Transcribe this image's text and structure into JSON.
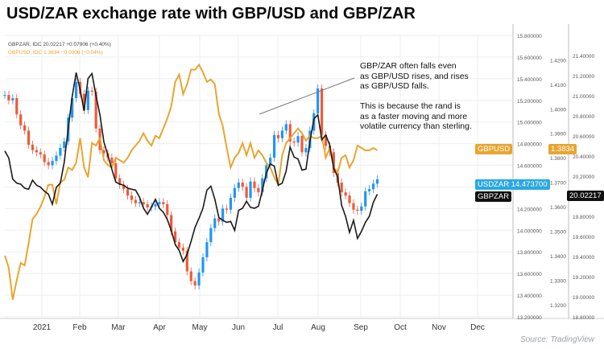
{
  "title": "USD/ZAR exchange rate with GBP/USD and GBP/ZAR",
  "source": "Source: TradingView",
  "legend": {
    "gbpzar_line": "GBPZAR, IDC  20.02217  +0.07906 (+0.40%)",
    "gbpusd_line": "GBPUSD, IDC  1.3834  −0.0006 (−0.04%)"
  },
  "annotation": {
    "line1": "GBP/ZAR often falls even",
    "line2": "as GBP/USD rises, and rises",
    "line3": "as GBP/USD falls.",
    "line4": "This is because the rand is",
    "line5": "as a faster moving and more",
    "line6": "volatile currency than sterling."
  },
  "badges": {
    "gbpusd_name": "GBPUSD",
    "gbpusd_value": "1.3834",
    "usdzar_combined": "USDZAR 14.473700",
    "gbpzar_name": "GBPZAR",
    "gbpzar_value": "20.02217"
  },
  "colors": {
    "gbpusd": "#e8a530",
    "gbpzar": "#1a1a1a",
    "up_candle": "#2196f3",
    "down_candle": "#ef5a3a",
    "grid": "#eeeeee"
  },
  "chart_data": {
    "type": "line",
    "title": "USD/ZAR exchange rate with GBP/USD and GBP/ZAR",
    "x_tick_labels": [
      "2021",
      "Feb",
      "Mar",
      "Apr",
      "May",
      "Jun",
      "Jul",
      "Aug",
      "Sep",
      "Oct",
      "Nov",
      "Dec"
    ],
    "axes": {
      "usdzar": {
        "ticks": [
          "15.800000",
          "15.600000",
          "15.400000",
          "15.200000",
          "15.000000",
          "14.800000",
          "14.600000",
          "14.400000",
          "14.200000",
          "14.000000",
          "13.800000",
          "13.600000",
          "13.400000",
          "13.200000"
        ],
        "ylim": [
          13.2,
          15.8
        ]
      },
      "gbpusd": {
        "ticks": [
          "1.4200",
          "1.4100",
          "1.4000",
          "1.3900",
          "1.3800",
          "1.3700",
          "1.3600",
          "1.3500",
          "1.3400",
          "1.3300",
          "1.3200"
        ],
        "ylim": [
          1.315,
          1.43
        ]
      },
      "gbpzar": {
        "ticks": [
          "21.40000",
          "21.20000",
          "21.00000",
          "20.80000",
          "20.60000",
          "20.40000",
          "20.20000",
          "20.00000",
          "19.80000",
          "19.60000",
          "19.40000",
          "19.20000",
          "19.00000",
          "18.80000"
        ],
        "ylim": [
          18.8,
          21.6
        ]
      }
    },
    "series": [
      {
        "name": "GBPZAR",
        "axis": "gbpzar",
        "style": "line",
        "x": [
          0,
          2,
          4,
          6,
          8,
          10,
          12,
          14,
          16,
          18,
          20,
          22,
          24,
          26,
          28,
          30,
          32,
          34,
          36,
          38,
          40,
          42,
          44,
          46,
          48,
          50,
          52,
          54,
          56,
          58,
          60,
          62,
          64,
          66,
          68,
          70,
          72,
          74,
          76,
          78,
          80,
          82,
          84,
          86,
          88,
          90,
          92,
          94,
          96,
          98,
          100,
          102,
          104,
          106,
          108,
          110,
          112,
          114,
          116,
          118,
          120,
          122,
          124,
          126,
          128,
          130,
          132,
          134,
          136,
          138,
          140,
          142,
          144,
          146,
          148,
          150,
          152,
          154,
          156,
          158,
          160,
          162,
          164,
          166,
          168,
          170,
          172,
          174,
          176,
          178,
          180,
          182,
          184,
          186,
          188
        ],
        "values": [
          20.45,
          20.38,
          20.17,
          20.13,
          20.12,
          20.08,
          20.07,
          20.16,
          20.11,
          20.09,
          20.05,
          20.02,
          19.92,
          20.09,
          20.13,
          20.34,
          20.67,
          20.99,
          21.23,
          21.06,
          20.85,
          21.17,
          21.22,
          21.0,
          20.81,
          20.54,
          20.41,
          20.27,
          20.14,
          20.12,
          20.11,
          20.08,
          20.07,
          20.06,
          19.99,
          19.88,
          19.82,
          19.89,
          19.97,
          19.88,
          19.84,
          19.77,
          19.66,
          19.52,
          19.46,
          19.35,
          19.42,
          19.55,
          19.69,
          19.78,
          19.88,
          20.06,
          20.1,
          19.97,
          19.79,
          19.76,
          19.74,
          19.75,
          19.66,
          19.86,
          19.88,
          19.95,
          19.89,
          19.88,
          19.9,
          20.06,
          20.23,
          20.32,
          20.3,
          20.11,
          20.13,
          20.25,
          20.49,
          20.39,
          20.37,
          20.26,
          20.27,
          20.54,
          20.77,
          20.81,
          20.56,
          20.61,
          20.51,
          20.28,
          20.19,
          19.91,
          19.8,
          19.64,
          19.76,
          19.58,
          19.65,
          19.74,
          19.8,
          19.94,
          20.02
        ]
      },
      {
        "name": "GBPUSD",
        "axis": "gbpusd",
        "style": "line",
        "x": [
          0,
          2,
          4,
          6,
          8,
          10,
          12,
          14,
          16,
          18,
          20,
          22,
          24,
          26,
          28,
          30,
          32,
          34,
          36,
          38,
          40,
          42,
          44,
          46,
          48,
          50,
          52,
          54,
          56,
          58,
          60,
          62,
          64,
          66,
          68,
          70,
          72,
          74,
          76,
          78,
          80,
          82,
          84,
          86,
          88,
          90,
          92,
          94,
          96,
          98,
          100,
          102,
          104,
          106,
          108,
          110,
          112,
          114,
          116,
          118,
          120,
          122,
          124,
          126,
          128,
          130,
          132,
          134,
          136,
          138,
          140,
          142,
          144,
          146,
          148,
          150,
          152,
          154,
          156,
          158,
          160,
          162,
          164,
          166,
          168,
          170,
          172,
          174,
          176,
          178,
          180,
          182,
          184,
          186,
          188
        ],
        "values": [
          1.34,
          1.335,
          1.322,
          1.33,
          1.337,
          1.336,
          1.345,
          1.355,
          1.357,
          1.36,
          1.364,
          1.369,
          1.369,
          1.361,
          1.37,
          1.371,
          1.376,
          1.375,
          1.378,
          1.388,
          1.376,
          1.372,
          1.386,
          1.385,
          1.388,
          1.379,
          1.377,
          1.376,
          1.38,
          1.379,
          1.378,
          1.38,
          1.383,
          1.385,
          1.387,
          1.39,
          1.387,
          1.385,
          1.389,
          1.388,
          1.392,
          1.396,
          1.401,
          1.411,
          1.414,
          1.406,
          1.41,
          1.416,
          1.416,
          1.418,
          1.415,
          1.411,
          1.412,
          1.41,
          1.398,
          1.393,
          1.384,
          1.376,
          1.38,
          1.382,
          1.386,
          1.381,
          1.386,
          1.38,
          1.383,
          1.381,
          1.378,
          1.376,
          1.372,
          1.369,
          1.381,
          1.386,
          1.388,
          1.39,
          1.392,
          1.39,
          1.387,
          1.389,
          1.388,
          1.388,
          1.389,
          1.38,
          1.384,
          1.376,
          1.374,
          1.38,
          1.381,
          1.376,
          1.379,
          1.385,
          1.384,
          1.383,
          1.383,
          1.384,
          1.383
        ]
      },
      {
        "name": "USDZAR",
        "axis": "usdzar",
        "style": "candles",
        "x": [
          0,
          2,
          4,
          6,
          8,
          10,
          12,
          14,
          16,
          18,
          20,
          22,
          24,
          26,
          28,
          30,
          32,
          34,
          36,
          38,
          40,
          42,
          44,
          46,
          48,
          50,
          52,
          54,
          56,
          58,
          60,
          62,
          64,
          66,
          68,
          70,
          72,
          74,
          76,
          78,
          80,
          82,
          84,
          86,
          88,
          90,
          92,
          94,
          96,
          98,
          100,
          102,
          104,
          106,
          108,
          110,
          112,
          114,
          116,
          118,
          120,
          122,
          124,
          126,
          128,
          130,
          132,
          134,
          136,
          138,
          140,
          142,
          144,
          146,
          148,
          150,
          152,
          154,
          156,
          158,
          160,
          162,
          164,
          166,
          168,
          170,
          172,
          174,
          176,
          178,
          180,
          182,
          184,
          186,
          188
        ],
        "values": [
          15.25,
          15.2,
          15.22,
          15.07,
          14.97,
          14.92,
          14.79,
          14.74,
          14.72,
          14.7,
          14.63,
          14.6,
          14.64,
          14.69,
          14.76,
          14.82,
          15.04,
          15.22,
          15.37,
          15.26,
          15.11,
          15.29,
          15.28,
          14.94,
          14.74,
          14.71,
          14.67,
          14.62,
          14.48,
          14.42,
          14.38,
          14.32,
          14.28,
          14.25,
          14.26,
          14.24,
          14.21,
          14.22,
          14.24,
          14.26,
          14.24,
          14.14,
          13.99,
          13.89,
          13.84,
          13.81,
          13.62,
          13.53,
          13.49,
          13.61,
          13.75,
          13.89,
          14.02,
          14.11,
          14.08,
          14.2,
          14.19,
          14.3,
          14.39,
          14.44,
          14.4,
          14.3,
          14.45,
          14.39,
          14.35,
          14.48,
          14.6,
          14.67,
          14.88,
          14.85,
          14.92,
          14.98,
          14.82,
          14.81,
          14.87,
          14.72,
          14.76,
          14.92,
          15.08,
          15.31,
          14.88,
          14.78,
          14.72,
          14.53,
          14.44,
          14.35,
          14.32,
          14.25,
          14.19,
          14.18,
          14.22,
          14.36,
          14.38,
          14.43,
          14.47
        ]
      }
    ],
    "annotations": [
      "GBP/ZAR often falls even as GBP/USD rises, and rises as GBP/USD falls.",
      "This is because the rand is as a faster moving and more volatile currency than sterling."
    ],
    "grid": true,
    "legend": "top-left"
  }
}
